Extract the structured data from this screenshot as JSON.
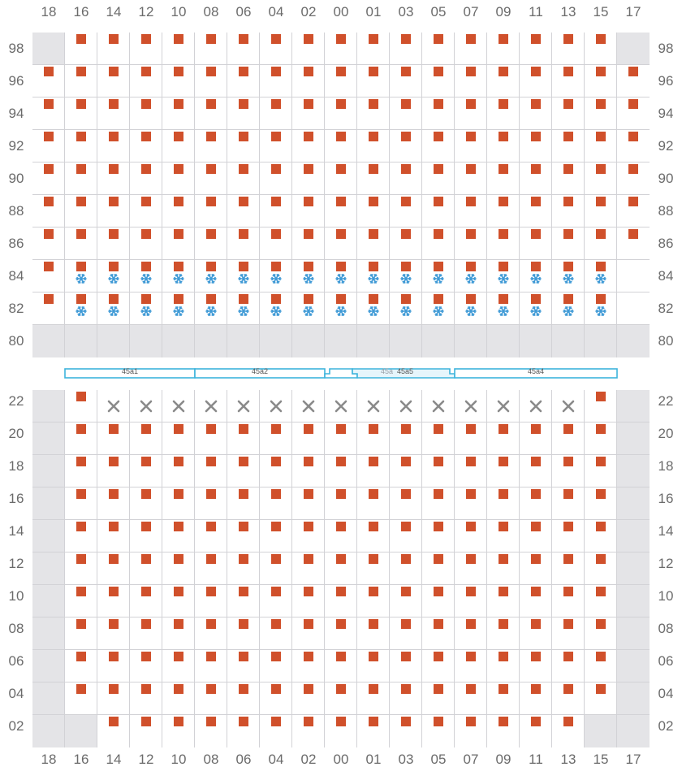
{
  "columns": [
    "18",
    "16",
    "14",
    "12",
    "10",
    "08",
    "06",
    "04",
    "02",
    "00",
    "01",
    "03",
    "05",
    "07",
    "09",
    "11",
    "13",
    "15",
    "17"
  ],
  "deck": {
    "rows": [
      "98",
      "96",
      "94",
      "92",
      "90",
      "88",
      "86",
      "84",
      "82",
      "80"
    ],
    "disabled_cells": [
      [
        "98",
        "18"
      ],
      [
        "98",
        "17"
      ],
      [
        "80",
        "*"
      ]
    ],
    "reefer_rows": [
      "84",
      "82"
    ],
    "reefer_columns": [
      "16",
      "14",
      "12",
      "10",
      "08",
      "06",
      "04",
      "02",
      "00",
      "01",
      "03",
      "05",
      "07",
      "09",
      "11",
      "13",
      "15"
    ],
    "empty_container_cells": [
      [
        "98",
        "18"
      ],
      [
        "98",
        "17"
      ],
      [
        "84",
        "17"
      ],
      [
        "82",
        "17"
      ]
    ]
  },
  "hold": {
    "rows": [
      "22",
      "20",
      "18",
      "16",
      "14",
      "12",
      "10",
      "08",
      "06",
      "04",
      "02"
    ],
    "disabled_cells": [
      [
        "*",
        "18"
      ],
      [
        "*",
        "17"
      ],
      [
        "02",
        "16"
      ],
      [
        "02",
        "15"
      ]
    ],
    "blocked_row": "22",
    "blocked_columns": [
      "14",
      "12",
      "10",
      "08",
      "06",
      "04",
      "02",
      "00",
      "01",
      "03",
      "05",
      "07",
      "09",
      "11",
      "13"
    ],
    "container_cells_row22": [
      "16",
      "15"
    ],
    "empty_cells_row02": [
      "16",
      "15"
    ]
  },
  "hatch_covers": [
    {
      "id": "45a1",
      "label": "45a1",
      "dim": false
    },
    {
      "id": "45a2",
      "label": "45a2",
      "dim": false
    },
    {
      "id": "45a3",
      "label": "45a",
      "dim": true
    },
    {
      "id": "45a5",
      "label": "45a5",
      "dim": false
    },
    {
      "id": "45a4",
      "label": "45a4",
      "dim": false
    }
  ],
  "colors": {
    "container": "#d0502b",
    "reefer": "#3f9ad6",
    "blocked": "#8a8a8a",
    "hatch": "#3db4dc",
    "disabled": "#e4e4e7"
  },
  "icons": {
    "container": "square-container-icon",
    "reefer": "snowflake-icon",
    "blocked": "cross-icon"
  }
}
